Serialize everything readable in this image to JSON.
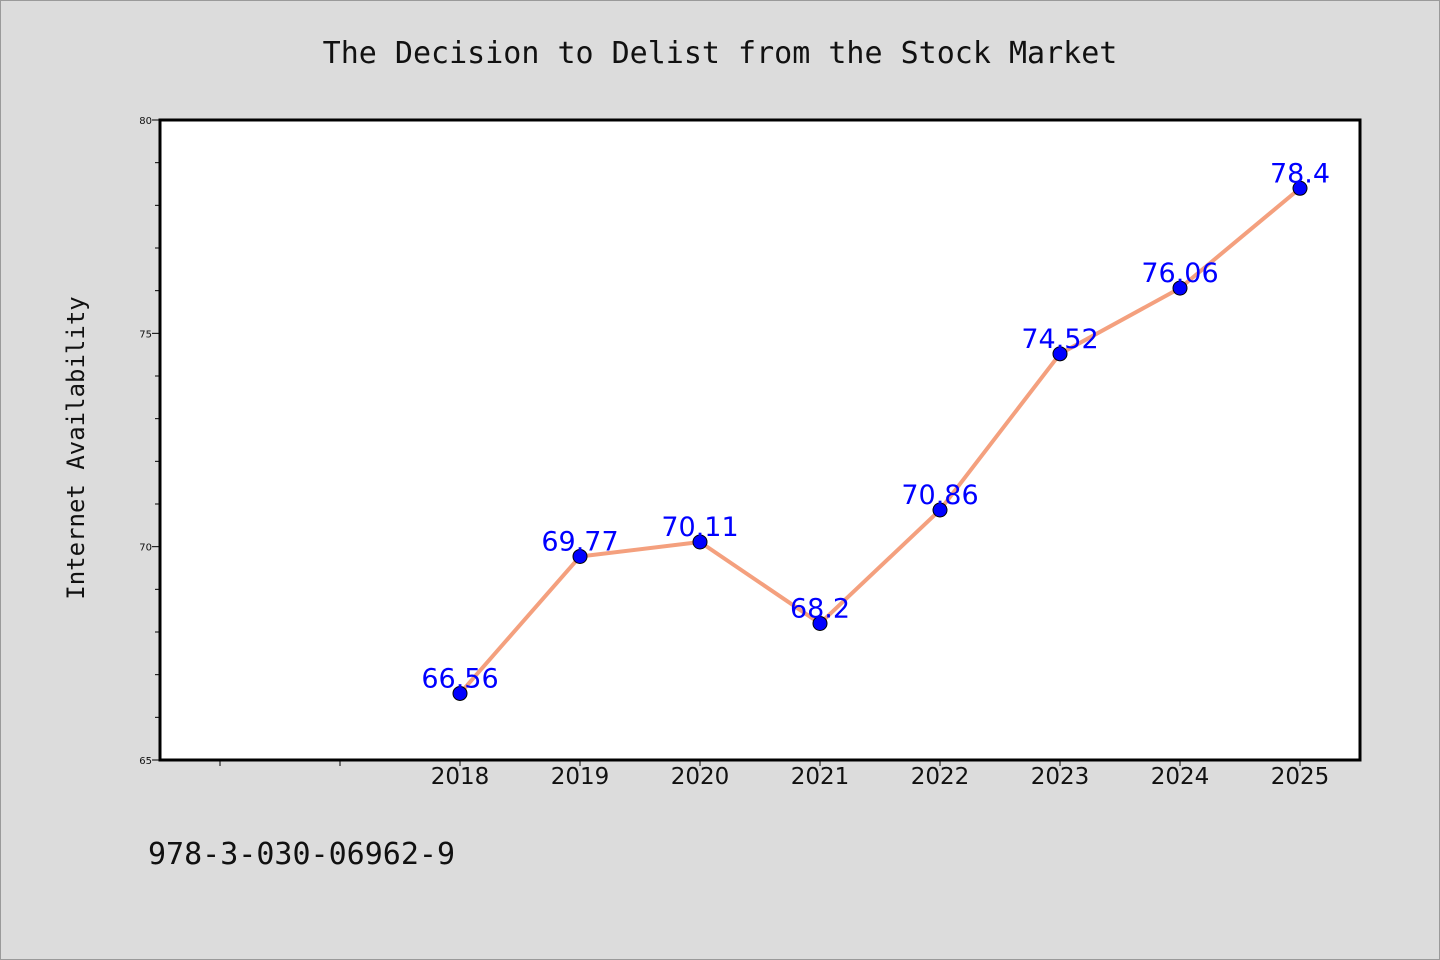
{
  "chart_data": {
    "type": "line",
    "title": "The Decision to Delist from the Stock Market",
    "xlabel": "",
    "ylabel": "Internet Availability",
    "x": [
      "2018",
      "2019",
      "2020",
      "2021",
      "2022",
      "2023",
      "2024",
      "2025"
    ],
    "series": [
      {
        "values": [
          66.56,
          69.77,
          70.11,
          68.2,
          70.86,
          74.52,
          76.06,
          78.4
        ],
        "labels": [
          "66.56",
          "69.77",
          "70.11",
          "68.2",
          "70.86",
          "74.52",
          "76.06",
          "78.4"
        ]
      }
    ],
    "ylim": [
      65,
      80
    ],
    "yticks": [
      "65",
      "70",
      "75",
      "80"
    ],
    "grid": false,
    "colors": {
      "line": "#f4a07e",
      "marker": "#0000ff",
      "label": "#0000ff",
      "background": "#dcdcdc",
      "plot_background": "#ffffff"
    }
  },
  "footnote": "978-3-030-06962-9"
}
